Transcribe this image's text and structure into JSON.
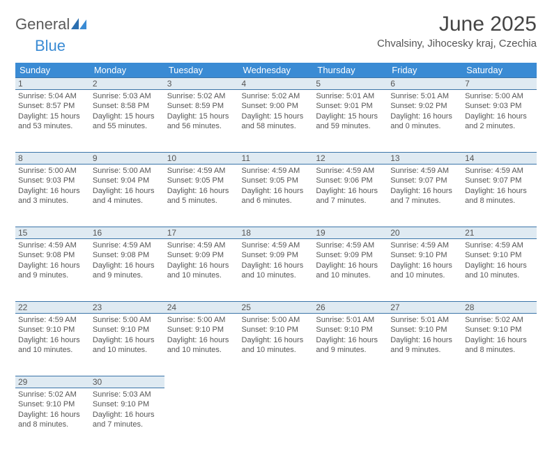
{
  "brand": {
    "general": "General",
    "blue": "Blue"
  },
  "title": "June 2025",
  "location": "Chvalsiny, Jihocesky kraj, Czechia",
  "colors": {
    "header_bg": "#3a8bd4",
    "header_text": "#ffffff",
    "daynum_bg": "#dfeaf2",
    "daynum_border": "#3a74a8",
    "body_text": "#555555",
    "logo_gray": "#5a5a5a",
    "logo_blue": "#3a8bd4"
  },
  "dow": [
    "Sunday",
    "Monday",
    "Tuesday",
    "Wednesday",
    "Thursday",
    "Friday",
    "Saturday"
  ],
  "weeks": [
    [
      {
        "n": "1",
        "sr": "Sunrise: 5:04 AM",
        "ss": "Sunset: 8:57 PM",
        "d1": "Daylight: 15 hours",
        "d2": "and 53 minutes."
      },
      {
        "n": "2",
        "sr": "Sunrise: 5:03 AM",
        "ss": "Sunset: 8:58 PM",
        "d1": "Daylight: 15 hours",
        "d2": "and 55 minutes."
      },
      {
        "n": "3",
        "sr": "Sunrise: 5:02 AM",
        "ss": "Sunset: 8:59 PM",
        "d1": "Daylight: 15 hours",
        "d2": "and 56 minutes."
      },
      {
        "n": "4",
        "sr": "Sunrise: 5:02 AM",
        "ss": "Sunset: 9:00 PM",
        "d1": "Daylight: 15 hours",
        "d2": "and 58 minutes."
      },
      {
        "n": "5",
        "sr": "Sunrise: 5:01 AM",
        "ss": "Sunset: 9:01 PM",
        "d1": "Daylight: 15 hours",
        "d2": "and 59 minutes."
      },
      {
        "n": "6",
        "sr": "Sunrise: 5:01 AM",
        "ss": "Sunset: 9:02 PM",
        "d1": "Daylight: 16 hours",
        "d2": "and 0 minutes."
      },
      {
        "n": "7",
        "sr": "Sunrise: 5:00 AM",
        "ss": "Sunset: 9:03 PM",
        "d1": "Daylight: 16 hours",
        "d2": "and 2 minutes."
      }
    ],
    [
      {
        "n": "8",
        "sr": "Sunrise: 5:00 AM",
        "ss": "Sunset: 9:03 PM",
        "d1": "Daylight: 16 hours",
        "d2": "and 3 minutes."
      },
      {
        "n": "9",
        "sr": "Sunrise: 5:00 AM",
        "ss": "Sunset: 9:04 PM",
        "d1": "Daylight: 16 hours",
        "d2": "and 4 minutes."
      },
      {
        "n": "10",
        "sr": "Sunrise: 4:59 AM",
        "ss": "Sunset: 9:05 PM",
        "d1": "Daylight: 16 hours",
        "d2": "and 5 minutes."
      },
      {
        "n": "11",
        "sr": "Sunrise: 4:59 AM",
        "ss": "Sunset: 9:05 PM",
        "d1": "Daylight: 16 hours",
        "d2": "and 6 minutes."
      },
      {
        "n": "12",
        "sr": "Sunrise: 4:59 AM",
        "ss": "Sunset: 9:06 PM",
        "d1": "Daylight: 16 hours",
        "d2": "and 7 minutes."
      },
      {
        "n": "13",
        "sr": "Sunrise: 4:59 AM",
        "ss": "Sunset: 9:07 PM",
        "d1": "Daylight: 16 hours",
        "d2": "and 7 minutes."
      },
      {
        "n": "14",
        "sr": "Sunrise: 4:59 AM",
        "ss": "Sunset: 9:07 PM",
        "d1": "Daylight: 16 hours",
        "d2": "and 8 minutes."
      }
    ],
    [
      {
        "n": "15",
        "sr": "Sunrise: 4:59 AM",
        "ss": "Sunset: 9:08 PM",
        "d1": "Daylight: 16 hours",
        "d2": "and 9 minutes."
      },
      {
        "n": "16",
        "sr": "Sunrise: 4:59 AM",
        "ss": "Sunset: 9:08 PM",
        "d1": "Daylight: 16 hours",
        "d2": "and 9 minutes."
      },
      {
        "n": "17",
        "sr": "Sunrise: 4:59 AM",
        "ss": "Sunset: 9:09 PM",
        "d1": "Daylight: 16 hours",
        "d2": "and 10 minutes."
      },
      {
        "n": "18",
        "sr": "Sunrise: 4:59 AM",
        "ss": "Sunset: 9:09 PM",
        "d1": "Daylight: 16 hours",
        "d2": "and 10 minutes."
      },
      {
        "n": "19",
        "sr": "Sunrise: 4:59 AM",
        "ss": "Sunset: 9:09 PM",
        "d1": "Daylight: 16 hours",
        "d2": "and 10 minutes."
      },
      {
        "n": "20",
        "sr": "Sunrise: 4:59 AM",
        "ss": "Sunset: 9:10 PM",
        "d1": "Daylight: 16 hours",
        "d2": "and 10 minutes."
      },
      {
        "n": "21",
        "sr": "Sunrise: 4:59 AM",
        "ss": "Sunset: 9:10 PM",
        "d1": "Daylight: 16 hours",
        "d2": "and 10 minutes."
      }
    ],
    [
      {
        "n": "22",
        "sr": "Sunrise: 4:59 AM",
        "ss": "Sunset: 9:10 PM",
        "d1": "Daylight: 16 hours",
        "d2": "and 10 minutes."
      },
      {
        "n": "23",
        "sr": "Sunrise: 5:00 AM",
        "ss": "Sunset: 9:10 PM",
        "d1": "Daylight: 16 hours",
        "d2": "and 10 minutes."
      },
      {
        "n": "24",
        "sr": "Sunrise: 5:00 AM",
        "ss": "Sunset: 9:10 PM",
        "d1": "Daylight: 16 hours",
        "d2": "and 10 minutes."
      },
      {
        "n": "25",
        "sr": "Sunrise: 5:00 AM",
        "ss": "Sunset: 9:10 PM",
        "d1": "Daylight: 16 hours",
        "d2": "and 10 minutes."
      },
      {
        "n": "26",
        "sr": "Sunrise: 5:01 AM",
        "ss": "Sunset: 9:10 PM",
        "d1": "Daylight: 16 hours",
        "d2": "and 9 minutes."
      },
      {
        "n": "27",
        "sr": "Sunrise: 5:01 AM",
        "ss": "Sunset: 9:10 PM",
        "d1": "Daylight: 16 hours",
        "d2": "and 9 minutes."
      },
      {
        "n": "28",
        "sr": "Sunrise: 5:02 AM",
        "ss": "Sunset: 9:10 PM",
        "d1": "Daylight: 16 hours",
        "d2": "and 8 minutes."
      }
    ],
    [
      {
        "n": "29",
        "sr": "Sunrise: 5:02 AM",
        "ss": "Sunset: 9:10 PM",
        "d1": "Daylight: 16 hours",
        "d2": "and 8 minutes."
      },
      {
        "n": "30",
        "sr": "Sunrise: 5:03 AM",
        "ss": "Sunset: 9:10 PM",
        "d1": "Daylight: 16 hours",
        "d2": "and 7 minutes."
      },
      null,
      null,
      null,
      null,
      null
    ]
  ]
}
